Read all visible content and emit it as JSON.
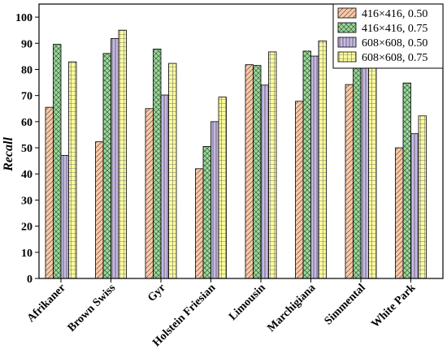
{
  "chart_data": {
    "type": "bar",
    "ylabel": "Recall",
    "ylim": [
      0,
      105
    ],
    "yticks": [
      0,
      10,
      20,
      30,
      40,
      50,
      60,
      70,
      80,
      90,
      100
    ],
    "categories": [
      "Afrikaner",
      "Brown Swiss",
      "Gyr",
      "Holstein Friesian",
      "Limousin",
      "Marchigiana",
      "Simmental",
      "White Park"
    ],
    "legend_position": "top-right",
    "series": [
      {
        "name": "416×416, 0.50",
        "values": [
          65.5,
          52.3,
          65.0,
          42.0,
          81.8,
          67.8,
          74.2,
          50.0
        ],
        "color": "#fdc8a3",
        "pattern": "diagonal"
      },
      {
        "name": "416×416, 0.75",
        "values": [
          89.6,
          86.1,
          87.8,
          50.5,
          81.5,
          87.0,
          89.7,
          74.8
        ],
        "color": "#9bd89b",
        "pattern": "crosshatch"
      },
      {
        "name": "608×608, 0.50",
        "values": [
          47.1,
          91.8,
          70.2,
          60.0,
          74.0,
          85.1,
          88.6,
          55.4
        ],
        "color": "#c6b8e6",
        "pattern": "vertical"
      },
      {
        "name": "608×608, 0.75",
        "values": [
          82.9,
          95.0,
          82.3,
          69.4,
          86.7,
          90.9,
          93.6,
          62.2
        ],
        "color": "#ffff99",
        "pattern": "grid"
      }
    ]
  }
}
